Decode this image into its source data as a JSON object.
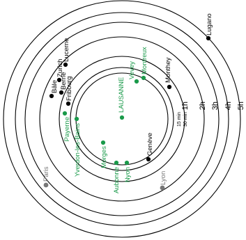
{
  "colors": {
    "ring": "#000000",
    "ring_label": "#000000",
    "green": "#1a9a4a",
    "black": "#000000",
    "gray": "#777777"
  },
  "rings": [
    {
      "label": "15 min"
    },
    {
      "label": "30 min"
    },
    {
      "label": "1h"
    },
    {
      "label": "2h"
    },
    {
      "label": "3h"
    },
    {
      "label": "4h"
    },
    {
      "label": "5h"
    }
  ],
  "cities": [
    {
      "name": "LAUSANNE",
      "color": "green"
    },
    {
      "name": "Vevey",
      "color": "green"
    },
    {
      "name": "Montreux",
      "color": "green"
    },
    {
      "name": "Monthey",
      "color": "black"
    },
    {
      "name": "Lugano",
      "color": "black"
    },
    {
      "name": "Lucerne",
      "color": "black"
    },
    {
      "name": "Zurich",
      "color": "black"
    },
    {
      "name": "Bâle",
      "color": "black"
    },
    {
      "name": "Berne",
      "color": "black"
    },
    {
      "name": "Fribourg",
      "color": "black"
    },
    {
      "name": "Payerne",
      "color": "green"
    },
    {
      "name": "Yverdon-les-Bains",
      "color": "green"
    },
    {
      "name": "Morges",
      "color": "green"
    },
    {
      "name": "Aubonne",
      "color": "green"
    },
    {
      "name": "Nyon",
      "color": "green"
    },
    {
      "name": "Genève",
      "color": "black"
    },
    {
      "name": "Lyon",
      "color": "gray"
    },
    {
      "name": "Paris",
      "color": "gray"
    }
  ]
}
